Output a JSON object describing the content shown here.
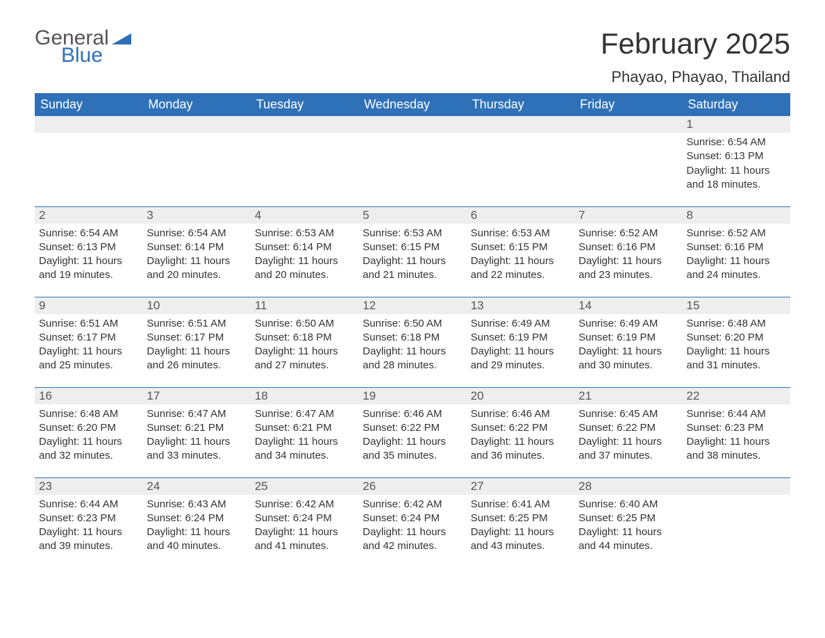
{
  "brand": {
    "line1": "General",
    "line2": "Blue",
    "color_primary": "#2f71b8"
  },
  "title": "February 2025",
  "location": "Phayao, Phayao, Thailand",
  "daynames": [
    "Sunday",
    "Monday",
    "Tuesday",
    "Wednesday",
    "Thursday",
    "Friday",
    "Saturday"
  ],
  "colors": {
    "header_bg": "#2f71b8",
    "header_fg": "#ffffff",
    "daynum_bg": "#eeeeee",
    "text": "#333333",
    "rule": "#2f71b8"
  },
  "weeks": [
    [
      null,
      null,
      null,
      null,
      null,
      null,
      {
        "n": "1",
        "sunrise": "6:54 AM",
        "sunset": "6:13 PM",
        "daylight": "11 hours and 18 minutes."
      }
    ],
    [
      {
        "n": "2",
        "sunrise": "6:54 AM",
        "sunset": "6:13 PM",
        "daylight": "11 hours and 19 minutes."
      },
      {
        "n": "3",
        "sunrise": "6:54 AM",
        "sunset": "6:14 PM",
        "daylight": "11 hours and 20 minutes."
      },
      {
        "n": "4",
        "sunrise": "6:53 AM",
        "sunset": "6:14 PM",
        "daylight": "11 hours and 20 minutes."
      },
      {
        "n": "5",
        "sunrise": "6:53 AM",
        "sunset": "6:15 PM",
        "daylight": "11 hours and 21 minutes."
      },
      {
        "n": "6",
        "sunrise": "6:53 AM",
        "sunset": "6:15 PM",
        "daylight": "11 hours and 22 minutes."
      },
      {
        "n": "7",
        "sunrise": "6:52 AM",
        "sunset": "6:16 PM",
        "daylight": "11 hours and 23 minutes."
      },
      {
        "n": "8",
        "sunrise": "6:52 AM",
        "sunset": "6:16 PM",
        "daylight": "11 hours and 24 minutes."
      }
    ],
    [
      {
        "n": "9",
        "sunrise": "6:51 AM",
        "sunset": "6:17 PM",
        "daylight": "11 hours and 25 minutes."
      },
      {
        "n": "10",
        "sunrise": "6:51 AM",
        "sunset": "6:17 PM",
        "daylight": "11 hours and 26 minutes."
      },
      {
        "n": "11",
        "sunrise": "6:50 AM",
        "sunset": "6:18 PM",
        "daylight": "11 hours and 27 minutes."
      },
      {
        "n": "12",
        "sunrise": "6:50 AM",
        "sunset": "6:18 PM",
        "daylight": "11 hours and 28 minutes."
      },
      {
        "n": "13",
        "sunrise": "6:49 AM",
        "sunset": "6:19 PM",
        "daylight": "11 hours and 29 minutes."
      },
      {
        "n": "14",
        "sunrise": "6:49 AM",
        "sunset": "6:19 PM",
        "daylight": "11 hours and 30 minutes."
      },
      {
        "n": "15",
        "sunrise": "6:48 AM",
        "sunset": "6:20 PM",
        "daylight": "11 hours and 31 minutes."
      }
    ],
    [
      {
        "n": "16",
        "sunrise": "6:48 AM",
        "sunset": "6:20 PM",
        "daylight": "11 hours and 32 minutes."
      },
      {
        "n": "17",
        "sunrise": "6:47 AM",
        "sunset": "6:21 PM",
        "daylight": "11 hours and 33 minutes."
      },
      {
        "n": "18",
        "sunrise": "6:47 AM",
        "sunset": "6:21 PM",
        "daylight": "11 hours and 34 minutes."
      },
      {
        "n": "19",
        "sunrise": "6:46 AM",
        "sunset": "6:22 PM",
        "daylight": "11 hours and 35 minutes."
      },
      {
        "n": "20",
        "sunrise": "6:46 AM",
        "sunset": "6:22 PM",
        "daylight": "11 hours and 36 minutes."
      },
      {
        "n": "21",
        "sunrise": "6:45 AM",
        "sunset": "6:22 PM",
        "daylight": "11 hours and 37 minutes."
      },
      {
        "n": "22",
        "sunrise": "6:44 AM",
        "sunset": "6:23 PM",
        "daylight": "11 hours and 38 minutes."
      }
    ],
    [
      {
        "n": "23",
        "sunrise": "6:44 AM",
        "sunset": "6:23 PM",
        "daylight": "11 hours and 39 minutes."
      },
      {
        "n": "24",
        "sunrise": "6:43 AM",
        "sunset": "6:24 PM",
        "daylight": "11 hours and 40 minutes."
      },
      {
        "n": "25",
        "sunrise": "6:42 AM",
        "sunset": "6:24 PM",
        "daylight": "11 hours and 41 minutes."
      },
      {
        "n": "26",
        "sunrise": "6:42 AM",
        "sunset": "6:24 PM",
        "daylight": "11 hours and 42 minutes."
      },
      {
        "n": "27",
        "sunrise": "6:41 AM",
        "sunset": "6:25 PM",
        "daylight": "11 hours and 43 minutes."
      },
      {
        "n": "28",
        "sunrise": "6:40 AM",
        "sunset": "6:25 PM",
        "daylight": "11 hours and 44 minutes."
      },
      null
    ]
  ],
  "labels": {
    "sunrise": "Sunrise: ",
    "sunset": "Sunset: ",
    "daylight": "Daylight: "
  }
}
